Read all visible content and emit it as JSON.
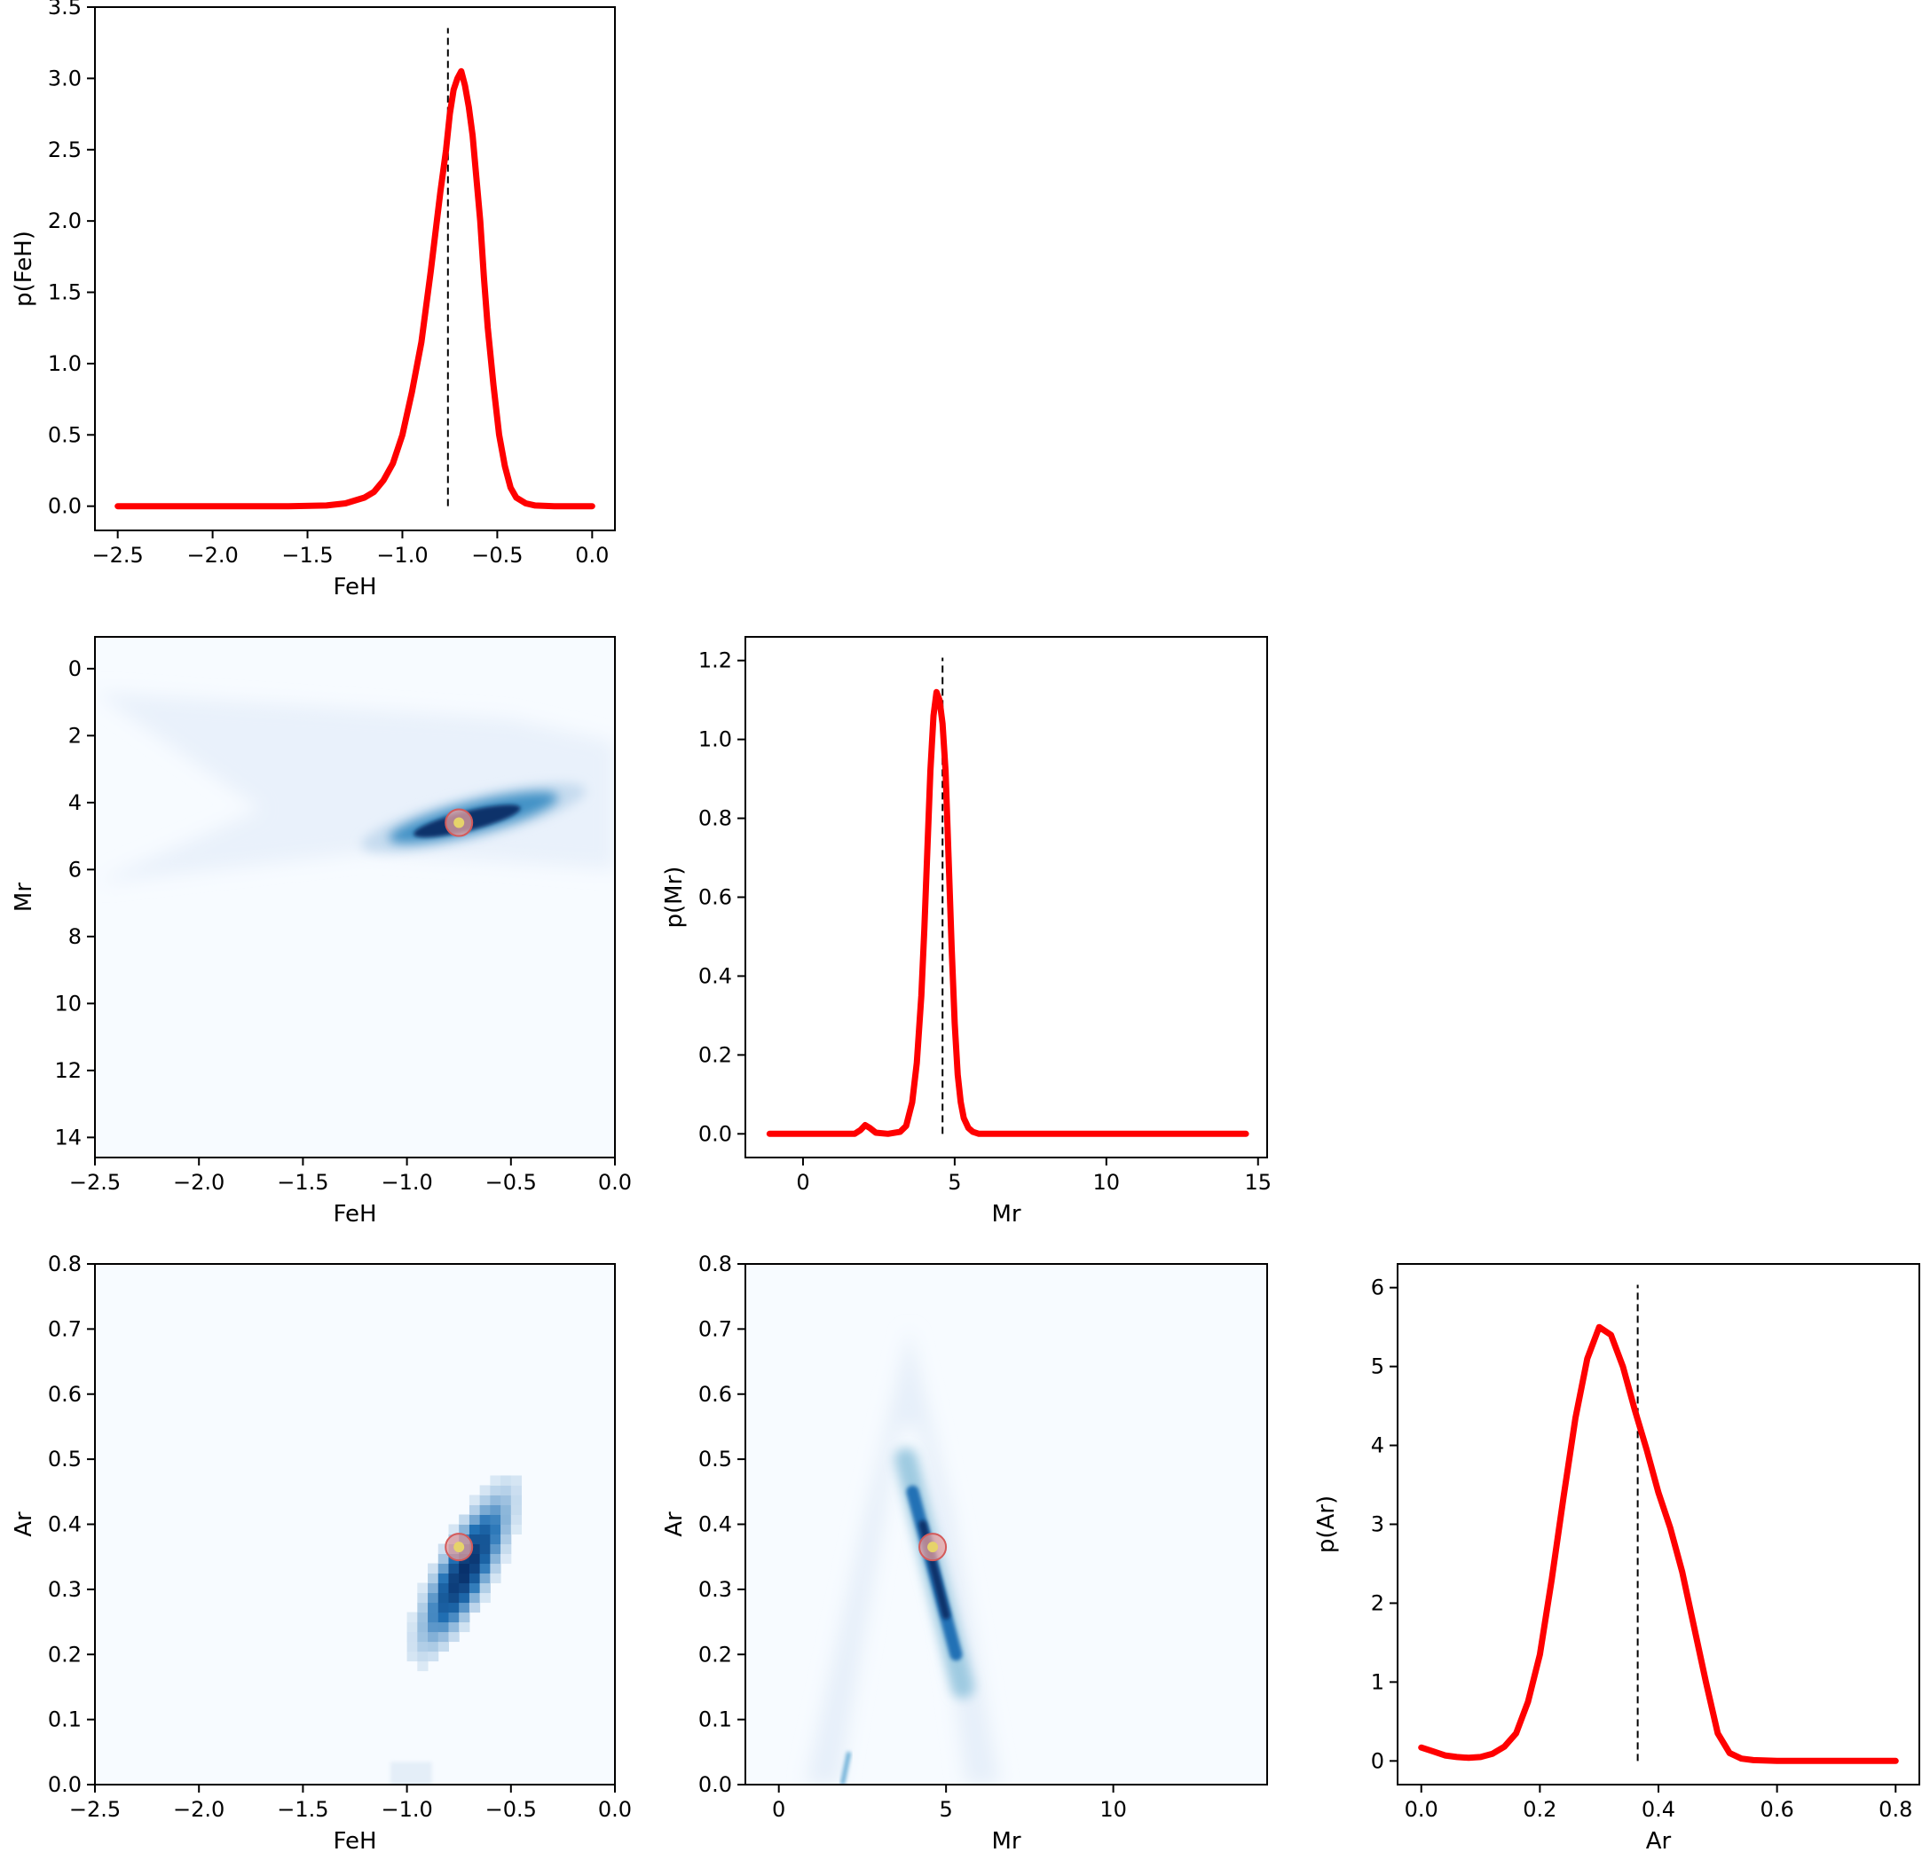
{
  "chart_data": [
    {
      "panel": "feh-marginal",
      "type": "line",
      "xlabel": "FeH",
      "ylabel": "p(FeH)",
      "xlim": [
        -2.62,
        0.12
      ],
      "ylim": [
        -0.17,
        3.5
      ],
      "xticks": [
        -2.5,
        -2.0,
        -1.5,
        -1.0,
        -0.5,
        0.0
      ],
      "xtick_labels": [
        "−2.5",
        "−2.0",
        "−1.5",
        "−1.0",
        "−0.5",
        "0.0"
      ],
      "yticks": [
        0.0,
        0.5,
        1.0,
        1.5,
        2.0,
        2.5,
        3.0,
        3.5
      ],
      "ytick_labels": [
        "0.0",
        "0.5",
        "1.0",
        "1.5",
        "2.0",
        "2.5",
        "3.0",
        "3.5"
      ],
      "series": [
        {
          "color": "#ff0000",
          "x": [
            -2.5,
            -2.0,
            -1.6,
            -1.4,
            -1.3,
            -1.2,
            -1.15,
            -1.1,
            -1.05,
            -1.0,
            -0.95,
            -0.9,
            -0.85,
            -0.8,
            -0.77,
            -0.75,
            -0.73,
            -0.71,
            -0.69,
            -0.67,
            -0.65,
            -0.63,
            -0.61,
            -0.59,
            -0.57,
            -0.55,
            -0.52,
            -0.49,
            -0.46,
            -0.43,
            -0.4,
            -0.35,
            -0.3,
            -0.2,
            0.0
          ],
          "y": [
            0.0,
            0.0,
            0.0,
            0.005,
            0.02,
            0.06,
            0.1,
            0.18,
            0.3,
            0.5,
            0.8,
            1.15,
            1.65,
            2.2,
            2.5,
            2.75,
            2.92,
            3.0,
            3.05,
            2.95,
            2.8,
            2.6,
            2.3,
            2.0,
            1.6,
            1.25,
            0.85,
            0.5,
            0.28,
            0.13,
            0.06,
            0.02,
            0.005,
            0.0,
            0.0
          ]
        }
      ],
      "vline": -0.76,
      "vline_style": "dashed"
    },
    {
      "panel": "feh-mr-joint",
      "type": "heatmap",
      "xlabel": "FeH",
      "ylabel": "Mr",
      "xlim": [
        -2.5,
        0.0
      ],
      "ylim": [
        14.6,
        -0.95
      ],
      "xticks": [
        -2.5,
        -2.0,
        -1.5,
        -1.0,
        -0.5,
        0.0
      ],
      "xtick_labels": [
        "−2.5",
        "−2.0",
        "−1.5",
        "−1.0",
        "−0.5",
        "0.0"
      ],
      "yticks": [
        0,
        2,
        4,
        6,
        8,
        10,
        12,
        14
      ],
      "ytick_labels": [
        "0",
        "2",
        "4",
        "6",
        "8",
        "10",
        "12",
        "14"
      ],
      "colormap": "Blues",
      "marker": {
        "x": -0.75,
        "y": 4.6
      }
    },
    {
      "panel": "mr-marginal",
      "type": "line",
      "xlabel": "Mr",
      "ylabel": "p(Mr)",
      "xlim": [
        -1.9,
        15.3
      ],
      "ylim": [
        -0.06,
        1.26
      ],
      "xticks": [
        0,
        5,
        10,
        15
      ],
      "xtick_labels": [
        "0",
        "5",
        "10",
        "15"
      ],
      "yticks": [
        0.0,
        0.2,
        0.4,
        0.6,
        0.8,
        1.0,
        1.2
      ],
      "ytick_labels": [
        "0.0",
        "0.2",
        "0.4",
        "0.6",
        "0.8",
        "1.0",
        "1.2"
      ],
      "series": [
        {
          "color": "#ff0000",
          "x": [
            -1.1,
            0.0,
            1.0,
            1.7,
            1.9,
            2.05,
            2.2,
            2.4,
            2.8,
            3.2,
            3.4,
            3.6,
            3.75,
            3.9,
            4.0,
            4.1,
            4.2,
            4.3,
            4.4,
            4.5,
            4.6,
            4.7,
            4.8,
            4.9,
            5.0,
            5.1,
            5.2,
            5.3,
            5.45,
            5.6,
            5.8,
            6.2,
            8.0,
            10.0,
            12.0,
            14.6
          ],
          "y": [
            0.0,
            0.0,
            0.0,
            0.0,
            0.01,
            0.022,
            0.015,
            0.003,
            0.0,
            0.005,
            0.02,
            0.08,
            0.18,
            0.35,
            0.52,
            0.72,
            0.92,
            1.06,
            1.12,
            1.1,
            1.04,
            0.92,
            0.7,
            0.47,
            0.28,
            0.15,
            0.08,
            0.04,
            0.015,
            0.005,
            0.0,
            0.0,
            0.0,
            0.0,
            0.0,
            0.0
          ]
        }
      ],
      "vline": 4.6,
      "vline_style": "dashed"
    },
    {
      "panel": "feh-ar-joint",
      "type": "heatmap",
      "xlabel": "FeH",
      "ylabel": "Ar",
      "xlim": [
        -2.5,
        0.0
      ],
      "ylim": [
        0.0,
        0.8
      ],
      "xticks": [
        -2.5,
        -2.0,
        -1.5,
        -1.0,
        -0.5,
        0.0
      ],
      "xtick_labels": [
        "−2.5",
        "−2.0",
        "−1.5",
        "−1.0",
        "−0.5",
        "0.0"
      ],
      "yticks": [
        0.0,
        0.1,
        0.2,
        0.3,
        0.4,
        0.5,
        0.6,
        0.7,
        0.8
      ],
      "ytick_labels": [
        "0.0",
        "0.1",
        "0.2",
        "0.3",
        "0.4",
        "0.5",
        "0.6",
        "0.7",
        "0.8"
      ],
      "colormap": "Blues",
      "marker": {
        "x": -0.75,
        "y": 0.365
      }
    },
    {
      "panel": "mr-ar-joint",
      "type": "heatmap",
      "xlabel": "Mr",
      "ylabel": "Ar",
      "xlim": [
        -1.0,
        14.6
      ],
      "ylim": [
        0.0,
        0.8
      ],
      "xticks": [
        0,
        5,
        10
      ],
      "xtick_labels": [
        "0",
        "5",
        "10"
      ],
      "yticks": [
        0.0,
        0.1,
        0.2,
        0.3,
        0.4,
        0.5,
        0.6,
        0.7,
        0.8
      ],
      "ytick_labels": [
        "0.0",
        "0.1",
        "0.2",
        "0.3",
        "0.4",
        "0.5",
        "0.6",
        "0.7",
        "0.8"
      ],
      "colormap": "Blues",
      "marker": {
        "x": 4.6,
        "y": 0.365
      }
    },
    {
      "panel": "ar-marginal",
      "type": "line",
      "xlabel": "Ar",
      "ylabel": "p(Ar)",
      "xlim": [
        -0.04,
        0.84
      ],
      "ylim": [
        -0.3,
        6.3
      ],
      "xticks": [
        0.0,
        0.2,
        0.4,
        0.6,
        0.8
      ],
      "xtick_labels": [
        "0.0",
        "0.2",
        "0.4",
        "0.6",
        "0.8"
      ],
      "yticks": [
        0,
        1,
        2,
        3,
        4,
        5,
        6
      ],
      "ytick_labels": [
        "0",
        "1",
        "2",
        "3",
        "4",
        "5",
        "6"
      ],
      "series": [
        {
          "color": "#ff0000",
          "x": [
            0.0,
            0.02,
            0.04,
            0.06,
            0.08,
            0.1,
            0.12,
            0.14,
            0.16,
            0.18,
            0.2,
            0.22,
            0.24,
            0.26,
            0.28,
            0.3,
            0.32,
            0.34,
            0.36,
            0.38,
            0.4,
            0.42,
            0.44,
            0.46,
            0.48,
            0.5,
            0.52,
            0.54,
            0.56,
            0.6,
            0.7,
            0.8
          ],
          "y": [
            0.17,
            0.12,
            0.07,
            0.05,
            0.04,
            0.05,
            0.09,
            0.18,
            0.35,
            0.75,
            1.35,
            2.3,
            3.35,
            4.35,
            5.1,
            5.5,
            5.4,
            5.0,
            4.45,
            3.95,
            3.4,
            2.95,
            2.4,
            1.7,
            1.0,
            0.35,
            0.1,
            0.03,
            0.01,
            0.0,
            0.0,
            0.0
          ]
        }
      ],
      "vline": 0.365,
      "vline_style": "dashed"
    }
  ]
}
